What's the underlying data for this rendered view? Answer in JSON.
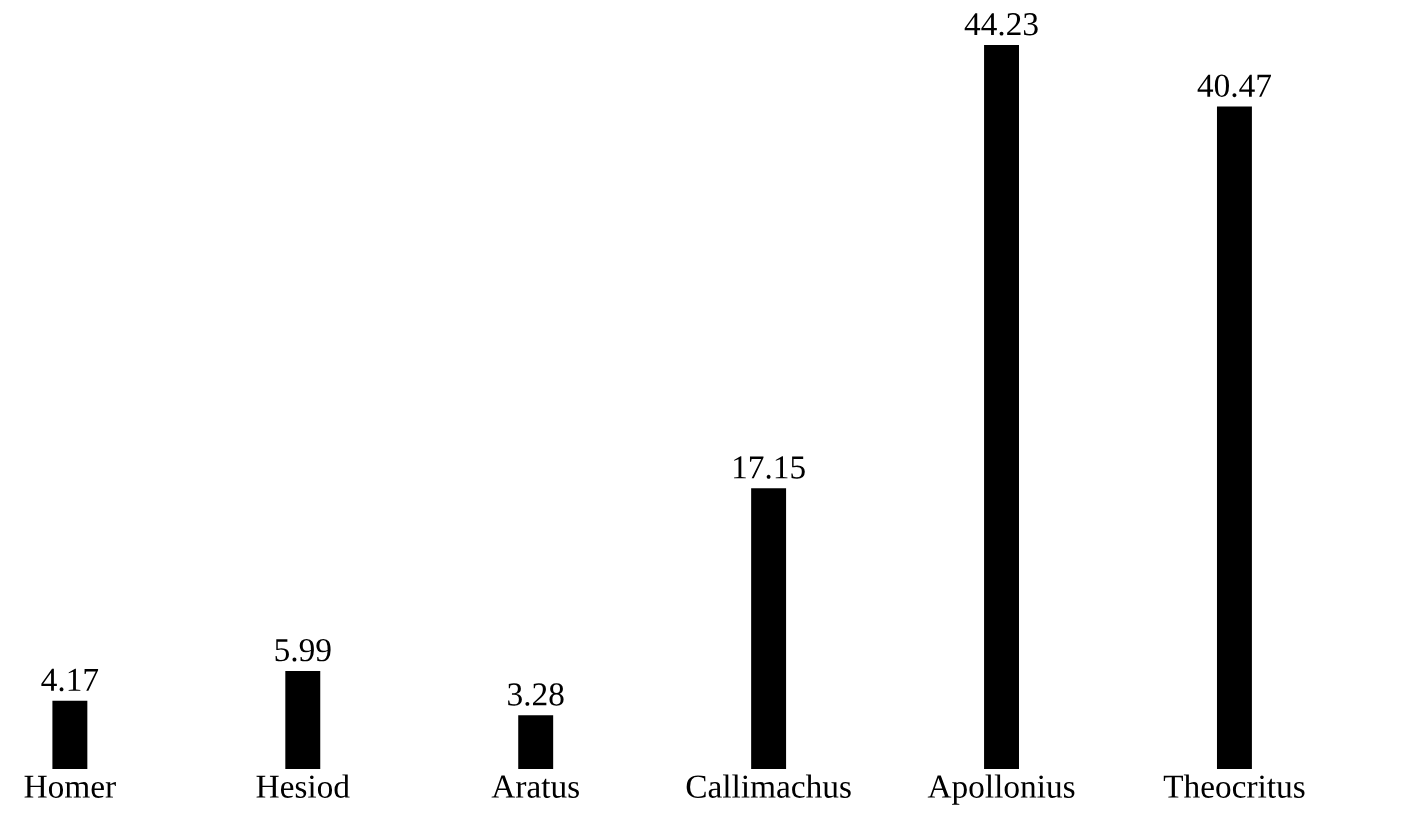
{
  "chart_data": {
    "type": "bar",
    "categories": [
      "Homer",
      "Hesiod",
      "Aratus",
      "Callimachus",
      "Apollonius",
      "Theocritus"
    ],
    "values": [
      4.17,
      5.99,
      3.28,
      17.15,
      44.23,
      40.47
    ],
    "color": "#000000",
    "data_labels": true,
    "grid": false,
    "legend": false
  }
}
